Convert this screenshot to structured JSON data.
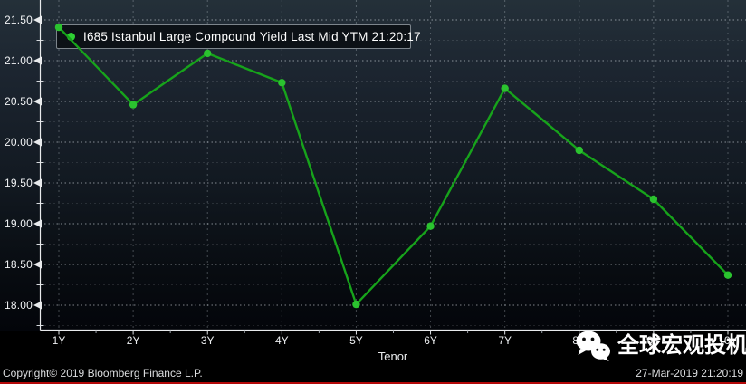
{
  "chart_data": {
    "type": "line",
    "categories": [
      "1Y",
      "2Y",
      "3Y",
      "4Y",
      "5Y",
      "6Y",
      "7Y",
      "8Y",
      "9Y",
      "10Y"
    ],
    "series": [
      {
        "name": "I685 Istanbul Large Compound Yield Last Mid YTM 21:20:17",
        "values": [
          21.41,
          20.46,
          21.09,
          20.73,
          18.01,
          18.97,
          20.66,
          19.9,
          19.3,
          18.37
        ]
      }
    ],
    "title": "",
    "xlabel": "Tenor",
    "ylabel": "",
    "ylim": [
      17.7,
      21.62
    ],
    "y_ticks_major": [
      21.5,
      21.0,
      20.5,
      20.0,
      19.5,
      19.0,
      18.5,
      18.0
    ],
    "y_ticks_minor": [
      21.25,
      20.75,
      20.25,
      19.75,
      19.25,
      18.75,
      18.25,
      17.75
    ],
    "grid": "dotted horizontal + dashed vertical",
    "legend_position": "top-left",
    "line_color": "#17a31b",
    "marker_color": "#2bc32f",
    "axis_color": "#e8eaec"
  },
  "legend": {
    "label": "I685 Istanbul Large Compound Yield Last Mid YTM 21:20:17"
  },
  "footer": {
    "copyright": "Copyright© 2019 Bloomberg Finance L.P.",
    "timestamp": "27-Mar-2019 21:20:19"
  },
  "watermark": {
    "icon": "wechat-icon",
    "text": "全球宏观投机"
  }
}
